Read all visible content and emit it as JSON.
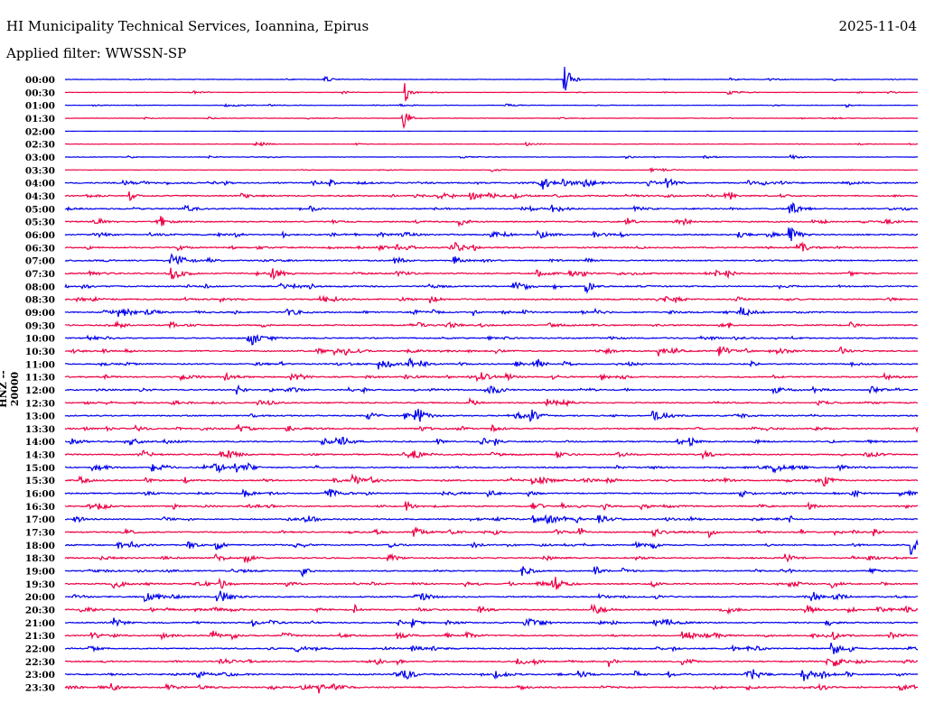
{
  "header": {
    "title": "HI Municipality Technical Services, Ioannina, Epirus",
    "date": "2025-11-04",
    "filter": "Applied filter: WWSSN-SP"
  },
  "chart_data": {
    "type": "line",
    "subtype": "helicorder",
    "ylabel": "HNZ -- 20000",
    "row_minutes": 30,
    "row_labels": [
      "00:00",
      "00:30",
      "01:00",
      "01:30",
      "02:00",
      "02:30",
      "03:00",
      "03:30",
      "04:00",
      "04:30",
      "05:00",
      "05:30",
      "06:00",
      "06:30",
      "07:00",
      "07:30",
      "08:00",
      "08:30",
      "09:00",
      "09:30",
      "10:00",
      "10:30",
      "11:00",
      "11:30",
      "12:00",
      "12:30",
      "13:00",
      "13:30",
      "14:00",
      "14:30",
      "15:00",
      "15:30",
      "16:00",
      "16:30",
      "17:00",
      "17:30",
      "18:00",
      "18:30",
      "19:00",
      "19:30",
      "20:00",
      "20:30",
      "21:00",
      "21:30",
      "22:00",
      "22:30",
      "23:00",
      "23:30"
    ],
    "colors": {
      "even_rows": "#0000ee",
      "odd_rows": "#ee0044"
    },
    "notable_events": [
      {
        "row": "00:00",
        "minute": 17.6,
        "amplitude": 3.0
      },
      {
        "row": "00:30",
        "minute": 12.0,
        "amplitude": 2.0
      },
      {
        "row": "01:30",
        "minute": 11.9,
        "amplitude": 2.5
      },
      {
        "row": "13:00",
        "minute": 16.4,
        "amplitude": 2.5
      },
      {
        "row": "18:00",
        "minute": 29.8,
        "amplitude": 2.0
      },
      {
        "row": "22:00",
        "minute": 27.0,
        "amplitude": 1.8
      }
    ]
  }
}
